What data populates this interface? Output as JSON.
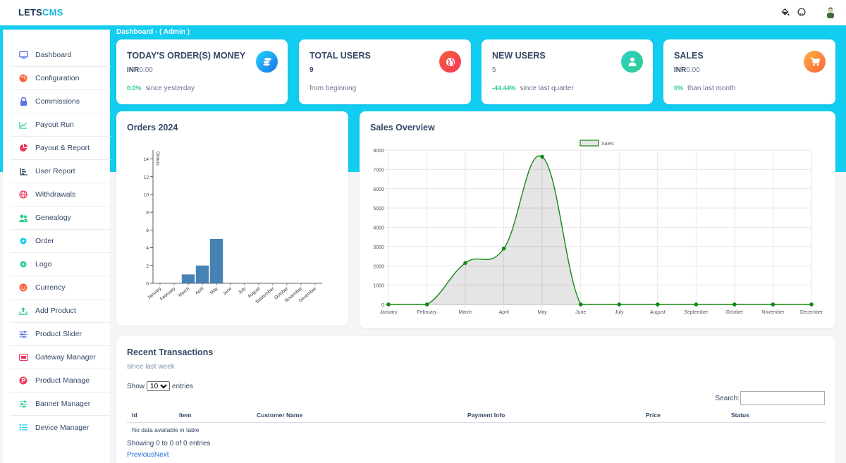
{
  "brand": {
    "part1": "LETS",
    "part2": "CMS"
  },
  "header": {
    "icons": [
      "paint-bucket-icon",
      "github-icon",
      "user-avatar"
    ]
  },
  "breadcrumb": "Dashboard - ( Admin )",
  "sidebar": {
    "items": [
      {
        "label": "Dashboard",
        "icon": "monitor-icon",
        "color": "#5e72e4"
      },
      {
        "label": "Configuration",
        "icon": "palette-icon",
        "color": "#f5365c"
      },
      {
        "label": "Commissions",
        "icon": "lock-icon",
        "color": "#5e72e4"
      },
      {
        "label": "Payout Run",
        "icon": "line-chart-icon",
        "color": "#2dce89"
      },
      {
        "label": "Payout & Report",
        "icon": "pie-chart-icon",
        "color": "#f5365c"
      },
      {
        "label": "User Report",
        "icon": "bar-list-icon",
        "color": "#344767"
      },
      {
        "label": "Withdrawals",
        "icon": "globe-icon",
        "color": "#f5365c"
      },
      {
        "label": "Genealogy",
        "icon": "users-icon",
        "color": "#2dce89"
      },
      {
        "label": "Order",
        "icon": "atom-icon",
        "color": "#11cdef"
      },
      {
        "label": "Logo",
        "icon": "atom-icon",
        "color": "#2dce89"
      },
      {
        "label": "Currency",
        "icon": "smile-icon",
        "color": "#fb6340"
      },
      {
        "label": "Add Product",
        "icon": "upload-icon",
        "color": "#2dce89"
      },
      {
        "label": "Product Slider",
        "icon": "sliders-icon",
        "color": "#5e72e4"
      },
      {
        "label": "Gateway Manager",
        "icon": "credit-card-icon",
        "color": "#f5365c"
      },
      {
        "label": "Product Manage",
        "icon": "product-p-icon",
        "color": "#f5365c"
      },
      {
        "label": "Banner Manager",
        "icon": "sliders-icon",
        "color": "#2dce89"
      },
      {
        "label": "Device Manager",
        "icon": "list-icon",
        "color": "#11cdef"
      }
    ]
  },
  "stats": [
    {
      "title": "TODAY'S ORDER(S) MONEY",
      "currency": "INR",
      "value": "0.00",
      "change": "0.0%",
      "footer": "since yesterday",
      "icon": "coins-icon",
      "color": "#1a73e8"
    },
    {
      "title": "TOTAL USERS",
      "currency": "",
      "value": "9",
      "change": "",
      "footer": "from beginning",
      "icon": "globe-icon",
      "color": "#f5365c"
    },
    {
      "title": "NEW USERS",
      "currency": "",
      "value": "5",
      "change": "-44.44%",
      "footer": "since last quarter",
      "icon": "user-icon",
      "color": "#2dce89"
    },
    {
      "title": "SALES",
      "currency": "INR",
      "value": "0.00",
      "change": "0%",
      "footer": "than last month",
      "icon": "cart-icon",
      "color": "#fb6340"
    }
  ],
  "orders_panel": {
    "title": "Orders 2024"
  },
  "sales_panel": {
    "title": "Sales Overview"
  },
  "chart_data": [
    {
      "type": "bar",
      "title": "Orders 2024",
      "ylabel": "Orders",
      "categories": [
        "January",
        "February",
        "March",
        "April",
        "May",
        "June",
        "July",
        "August",
        "September",
        "October",
        "November",
        "December"
      ],
      "values": [
        0,
        0,
        1,
        2,
        5,
        0,
        0,
        0,
        0,
        0,
        0,
        0
      ],
      "yticks": [
        0,
        2,
        4,
        6,
        8,
        10,
        12,
        14
      ],
      "ylim": [
        0,
        15
      ],
      "color": "#4682b4"
    },
    {
      "type": "area",
      "legend": "Sales",
      "categories": [
        "January",
        "February",
        "March",
        "April",
        "May",
        "June",
        "July",
        "August",
        "September",
        "October",
        "November",
        "December"
      ],
      "values": [
        0,
        0,
        2150,
        2900,
        7650,
        0,
        0,
        0,
        0,
        0,
        0,
        0
      ],
      "yticks": [
        0,
        1000,
        2000,
        3000,
        4000,
        5000,
        6000,
        7000,
        8000
      ],
      "ylim": [
        0,
        8000
      ],
      "grid": true,
      "color": "#138a13"
    }
  ],
  "transactions": {
    "title": "Recent Transactions",
    "subtitle": "since last week",
    "show_label": "Show",
    "entries_value": "10",
    "entries_label": "entries",
    "search_label": "Search:",
    "columns": [
      "Id",
      "Item",
      "Customer Name",
      "Payment Info",
      "Price",
      "Status"
    ],
    "empty_text": "No data available in table",
    "info": "Showing 0 to 0 of 0 entries",
    "prev": "Previous",
    "next": "Next"
  }
}
